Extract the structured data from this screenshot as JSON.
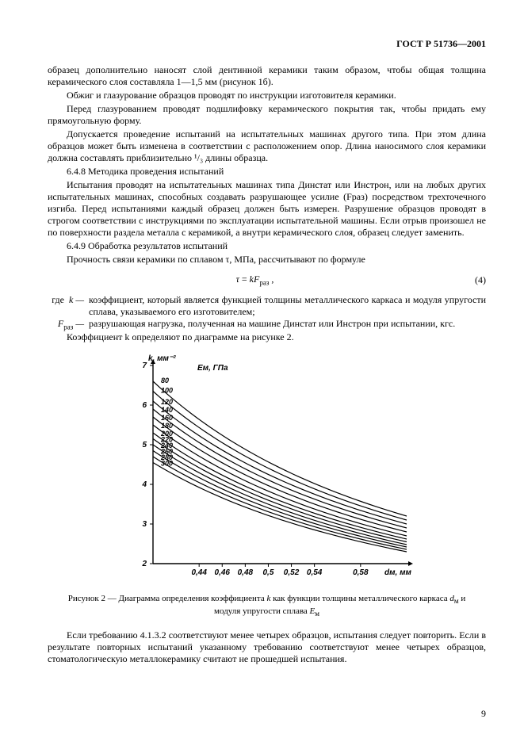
{
  "header": "ГОСТ Р 51736—2001",
  "body": {
    "p1": "образец дополнительно наносят слой дентинной керамики таким образом, чтобы общая толщина керамического слоя составляла 1—1,5 мм (рисунок 1б).",
    "p2": "Обжиг и глазурование образцов проводят по инструкции изготовителя керамики.",
    "p3": "Перед глазурованием проводят подшлифовку керамического покрытия так, чтобы придать ему прямоугольную форму.",
    "p4": "Допускается проведение испытаний на испытательных машинах другого типа. При этом длина образцов может быть изменена в соответствии с расположением опор. Длина наносимого слоя керамики должна составлять приблизительно ¹/₃ длины образца.",
    "p5": "6.4.8  Методика проведения испытаний",
    "p6": "Испытания проводят на испытательных машинах типа Динстат или Инстрон, или на любых других испытательных машинах, способных создавать разрушающее усилие (Fраз) посредством трех­точечного изгиба. Перед испытаниями каждый образец должен быть измерен. Разрушение образцов проводят в строгом соответствии с инструкциями по эксплуатации испытательной машины. Если отрыв произошел не по поверхности раздела металла с керамикой, а внутри керамического слоя, образец следует заменить.",
    "p7": "6.4.9  Обработка результатов испытаний",
    "p8": "Прочность связи керамики по сплавом τ, МПа, рассчитывают по формуле",
    "p9": "Коэффициент k определяют по диаграмме на рисунке 2.",
    "p10": "Если требованию 4.1.3.2 соответствуют менее четырех образцов, испытания следует повторить. Если в результате повторных испытаний указанному требованию соответствуют менее четырех образцов, стоматологическую металлокерамику считают не прошедшей испытания."
  },
  "formula": {
    "text": "τ = k·Fраз ,",
    "number": "(4)"
  },
  "where": {
    "lead": "где",
    "k_sym": "k —",
    "k_txt": "коэффициент, который является функцией толщины металлического каркаса и модуля упругости сплава, указываемого его изготовителем;",
    "f_sym": "Fраз —",
    "f_txt": "разрушающая нагрузка, полученная на машине Динстат или Инстрон при испытании, кгс."
  },
  "figure": {
    "caption": "Рисунок 2 — Диаграмма определения коэффициента k как функции толщины металлического каркаса dм и модуля упругости сплава Eм",
    "y_label": "k, мм⁻²",
    "legend_title": "Eм, ГПа",
    "x_label_suffix": "dм, мм",
    "chart": {
      "xlim": [
        0.4,
        0.62
      ],
      "ylim": [
        2,
        7
      ],
      "xticks": [
        0.44,
        0.46,
        0.48,
        0.5,
        0.52,
        0.54,
        0.58
      ],
      "yticks": [
        2,
        3,
        4,
        5,
        6,
        7
      ],
      "background_color": "#ffffff",
      "axis_color": "#000000",
      "line_color": "#000000",
      "line_width": 1.2,
      "tick_fontsize": 10,
      "label_fontsize": 10,
      "series_labels": [
        "80",
        "100",
        "120",
        "140",
        "160",
        "180",
        "200",
        "220",
        "240",
        "260",
        "280",
        "300"
      ],
      "curves_y_at_x040": [
        6.6,
        6.35,
        6.1,
        5.9,
        5.7,
        5.5,
        5.3,
        5.15,
        5.0,
        4.85,
        4.7,
        4.55
      ],
      "curves_y_at_x060": [
        3.2,
        3.1,
        3.0,
        2.9,
        2.8,
        2.7,
        2.62,
        2.55,
        2.48,
        2.42,
        2.36,
        2.3
      ],
      "arrowhead_size": 6
    }
  },
  "pagenum": "9"
}
